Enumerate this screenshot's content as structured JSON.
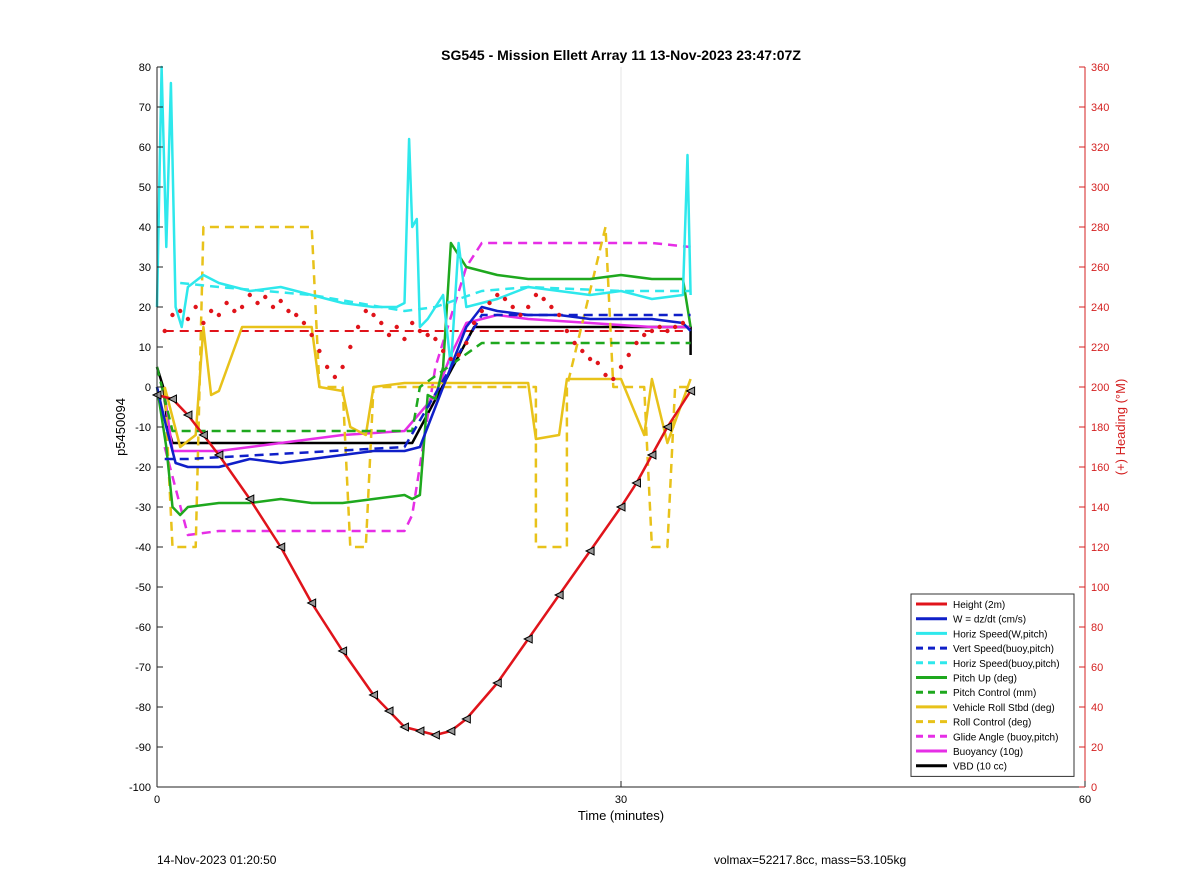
{
  "chart_data": {
    "type": "line",
    "title": "SG545 - Mission Ellett Array 11 13-Nov-2023 23:47:07Z",
    "xlabel": "Time (minutes)",
    "ylabel": "p5450094",
    "ylabel_right": "(+) Heading (°M)",
    "xlim": [
      0,
      60
    ],
    "ylim": [
      -100,
      80
    ],
    "ylim_right": [
      0,
      360
    ],
    "x_ticks": [
      0,
      30,
      60
    ],
    "y_ticks": [
      -100,
      -90,
      -80,
      -70,
      -60,
      -50,
      -40,
      -30,
      -20,
      -10,
      0,
      10,
      20,
      30,
      40,
      50,
      60,
      70,
      80
    ],
    "y_right_ticks": [
      0,
      20,
      40,
      60,
      80,
      100,
      120,
      140,
      160,
      180,
      200,
      220,
      240,
      260,
      280,
      300,
      320,
      340,
      360
    ],
    "grid": "x-only",
    "legend_position": "bottom-right",
    "colors": {
      "red": "#e0141b",
      "blue": "#0f1fc8",
      "cyan": "#2ee8ec",
      "green": "#1ea81e",
      "gold": "#e8c21a",
      "magenta": "#e62ee6",
      "black": "#000000",
      "right_axis": "#d42020"
    },
    "series": [
      {
        "name": "Height (2m)",
        "color": "#e0141b",
        "style": "solid",
        "markers": "triangle",
        "x": [
          0,
          1,
          2,
          3,
          4,
          6,
          8,
          10,
          12,
          14,
          15,
          16,
          17,
          18,
          19,
          20,
          22,
          24,
          26,
          28,
          30,
          31,
          32,
          33,
          34.5
        ],
        "y": [
          -2,
          -3,
          -7,
          -12,
          -17,
          -28,
          -40,
          -54,
          -66,
          -77,
          -81,
          -85,
          -86,
          -87,
          -86,
          -83,
          -74,
          -63,
          -52,
          -41,
          -30,
          -24,
          -17,
          -10,
          -1
        ]
      },
      {
        "name": "W = dz/dt (cm/s)",
        "color": "#0f1fc8",
        "style": "solid",
        "x": [
          0,
          0.6,
          1.2,
          2,
          4,
          6,
          8,
          10,
          12,
          14,
          16,
          17,
          18,
          19,
          20,
          21,
          22,
          24,
          26,
          28,
          30,
          32,
          34,
          34.5
        ],
        "y": [
          0,
          -10,
          -19,
          -20,
          -20,
          -18,
          -19,
          -18,
          -17,
          -16,
          -16,
          -15,
          -5,
          5,
          15,
          20,
          19,
          18,
          18,
          17,
          17,
          17,
          16,
          14
        ]
      },
      {
        "name": "Horiz Speed(W,pitch)",
        "color": "#2ee8ec",
        "style": "solid",
        "x": [
          0,
          0.3,
          0.6,
          0.9,
          1.2,
          1.6,
          2,
          3,
          4,
          5,
          6,
          8,
          10,
          12,
          14,
          15.5,
          16,
          16.3,
          16.5,
          16.8,
          17,
          17.5,
          18,
          18.5,
          19,
          19.5,
          20,
          22,
          24,
          26,
          28,
          30,
          32,
          34,
          34.3,
          34.5
        ],
        "y": [
          20,
          80,
          35,
          76,
          20,
          15,
          25,
          28,
          26,
          25,
          24,
          25,
          23,
          21,
          20,
          20,
          21,
          62,
          40,
          42,
          15,
          17,
          20,
          23,
          5,
          36,
          20,
          22,
          25,
          24,
          23,
          24,
          22,
          23,
          58,
          23
        ]
      },
      {
        "name": "Vert Speed(buoy,pitch)",
        "color": "#0f1fc8",
        "style": "dashed",
        "x": [
          0.5,
          2,
          16,
          19,
          21,
          34.5
        ],
        "y": [
          -18,
          -18,
          -15,
          5,
          18,
          18
        ]
      },
      {
        "name": "Horiz Speed(buoy,pitch)",
        "color": "#2ee8ec",
        "style": "dashed",
        "x": [
          1.5,
          4,
          10,
          16,
          18,
          21,
          24,
          30,
          34.5
        ],
        "y": [
          26,
          25,
          23,
          19,
          20,
          24,
          25,
          24,
          24
        ]
      },
      {
        "name": "Pitch Up (deg)",
        "color": "#1ea81e",
        "style": "solid",
        "x": [
          0,
          0.6,
          1,
          1.5,
          2,
          4,
          6,
          8,
          10,
          12,
          14,
          16,
          16.5,
          17,
          17.5,
          18,
          18.5,
          19,
          20,
          22,
          24,
          26,
          28,
          30,
          32,
          34,
          34.5
        ],
        "y": [
          0,
          -15,
          -30,
          -32,
          -30,
          -29,
          -29,
          -28,
          -29,
          -29,
          -28,
          -27,
          -28,
          -27,
          -2,
          -3,
          5,
          36,
          30,
          28,
          27,
          27,
          27,
          28,
          27,
          27,
          15
        ]
      },
      {
        "name": "Pitch Control (mm)",
        "color": "#1ea81e",
        "style": "dashed",
        "x": [
          0,
          1,
          16.5,
          17,
          21,
          34.5
        ],
        "y": [
          5,
          -11,
          -11,
          0,
          11,
          11
        ]
      },
      {
        "name": "Vehicle Roll Stbd (deg)",
        "color": "#e8c21a",
        "style": "solid",
        "x": [
          0.5,
          1.5,
          2.5,
          3,
          3.5,
          4,
          5.5,
          6,
          10,
          10.5,
          12,
          12.5,
          13.5,
          14,
          16,
          18,
          22,
          24,
          24.5,
          26,
          26.5,
          28,
          30,
          31.5,
          32,
          33,
          34.5
        ],
        "y": [
          0,
          -15,
          -12,
          15,
          -2,
          -1,
          15,
          15,
          15,
          0,
          -1,
          -10,
          -12,
          0,
          1,
          1,
          1,
          1,
          -13,
          -12,
          2,
          2,
          2,
          -12,
          2,
          -14,
          2
        ]
      },
      {
        "name": "Roll Control (deg)",
        "color": "#e8c21a",
        "style": "dashed",
        "x": [
          0.5,
          1,
          2.5,
          3,
          5.5,
          5.5,
          10,
          10.5,
          12,
          12.5,
          13.5,
          14,
          16,
          24.5,
          24.5,
          26.5,
          26.5,
          29,
          29.5,
          31.5,
          32,
          33,
          33.5,
          34.5
        ],
        "y": [
          0,
          -40,
          -40,
          40,
          40,
          40,
          40,
          0,
          0,
          -40,
          -40,
          0,
          0,
          0,
          -40,
          -40,
          0,
          40,
          0,
          0,
          -40,
          -40,
          0,
          0
        ]
      },
      {
        "name": "Glide Angle (buoy,pitch)",
        "color": "#e62ee6",
        "style": "dashed",
        "x": [
          0.5,
          2,
          4,
          8,
          12,
          16,
          16.5,
          18,
          20,
          21,
          24,
          28,
          32,
          34.5
        ],
        "y": [
          -15,
          -37,
          -36,
          -36,
          -36,
          -36,
          -32,
          5,
          30,
          36,
          36,
          36,
          36,
          35
        ]
      },
      {
        "name": "Buoyancy (10g)",
        "color": "#e62ee6",
        "style": "solid",
        "x": [
          0.5,
          1,
          4,
          8,
          12,
          16,
          18,
          19,
          20,
          22,
          24,
          28,
          32,
          34.5
        ],
        "y": [
          -2,
          -16,
          -16,
          -14,
          -12,
          -11,
          -2,
          8,
          16,
          18,
          17,
          16,
          15,
          15
        ]
      },
      {
        "name": "VBD (10 cc)",
        "color": "#000000",
        "style": "solid",
        "x": [
          0,
          0.4,
          0.7,
          1,
          16.5,
          20.5,
          34.5,
          34.5
        ],
        "y": [
          5,
          0,
          -10,
          -14,
          -14,
          15,
          15,
          8
        ]
      }
    ],
    "heading_series": {
      "color": "#e0141b",
      "style": "dotted",
      "x": [
        0.5,
        1,
        1.5,
        2,
        2.5,
        3,
        3.5,
        4,
        4.5,
        5,
        5.5,
        6,
        6.5,
        7,
        7.5,
        8,
        8.5,
        9,
        9.5,
        10,
        10.5,
        11,
        11.5,
        12,
        12.5,
        13,
        13.5,
        14,
        14.5,
        15,
        15.5,
        16,
        16.5,
        17,
        17.5,
        18,
        18.5,
        19,
        19.5,
        20,
        20.5,
        21,
        21.5,
        22,
        22.5,
        23,
        23.5,
        24,
        24.5,
        25,
        25.5,
        26,
        26.5,
        27,
        27.5,
        28,
        28.5,
        29,
        29.5,
        30,
        30.5,
        31,
        31.5,
        32,
        32.5,
        33,
        33.5,
        34
      ],
      "y": [
        228,
        236,
        238,
        234,
        240,
        232,
        238,
        236,
        242,
        238,
        240,
        246,
        242,
        245,
        240,
        243,
        238,
        236,
        232,
        226,
        218,
        210,
        205,
        210,
        220,
        230,
        238,
        236,
        232,
        226,
        230,
        224,
        232,
        228,
        226,
        224,
        218,
        214,
        216,
        222,
        232,
        238,
        242,
        246,
        244,
        240,
        236,
        240,
        246,
        244,
        240,
        236,
        228,
        222,
        218,
        214,
        212,
        206,
        204,
        210,
        216,
        222,
        226,
        228,
        230,
        228,
        230,
        232
      ],
      "ref_value": 228
    },
    "footer_left": "14-Nov-2023 01:20:50",
    "footer_right": "volmax=52217.8cc, mass=53.105kg"
  }
}
